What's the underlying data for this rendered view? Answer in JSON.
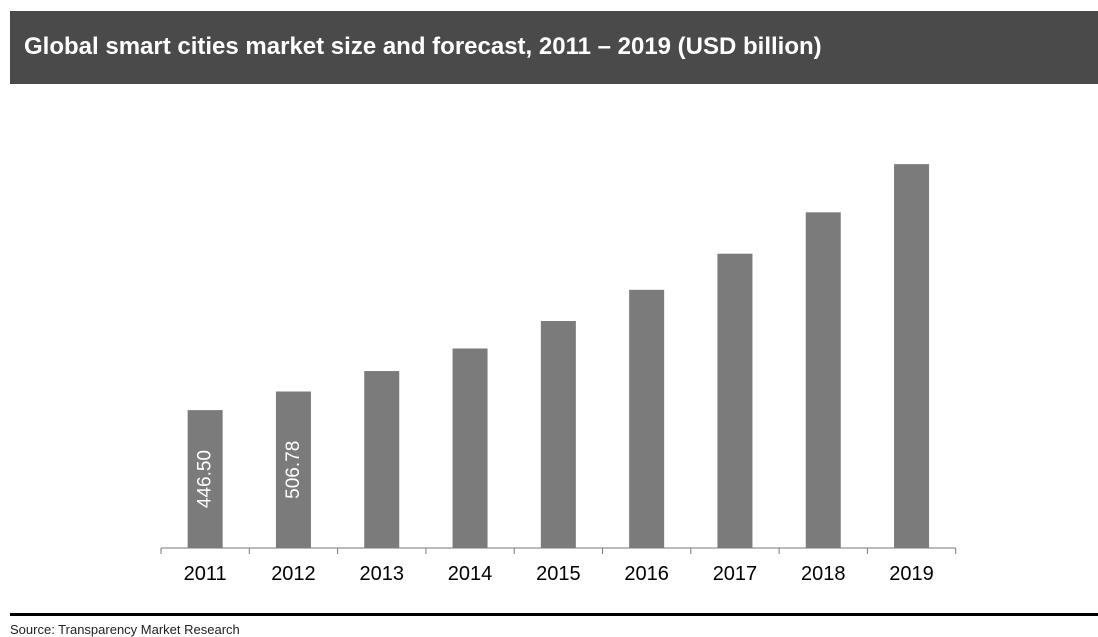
{
  "title": "Global smart cities market size and forecast, 2011 – 2019 (USD billion)",
  "source": "Source: Transparency Market Research",
  "colors": {
    "title_bg": "#4a4a4a",
    "bar": "#7b7b7b",
    "axis": "#777777",
    "label": "#ffffff"
  },
  "chart_data": {
    "type": "bar",
    "title": "Global smart cities market size and forecast, 2011 – 2019 (USD billion)",
    "categories": [
      "2011",
      "2012",
      "2013",
      "2014",
      "2015",
      "2016",
      "2017",
      "2018",
      "2019"
    ],
    "values": [
      446.5,
      506.78,
      573,
      646,
      735,
      836,
      953,
      1087,
      1243
    ],
    "data_labels": [
      "446.50",
      "506.78",
      "",
      "",
      "",
      "",
      "",
      "",
      ""
    ],
    "ylim": [
      0,
      1360
    ],
    "grid": false,
    "legend": "none"
  }
}
